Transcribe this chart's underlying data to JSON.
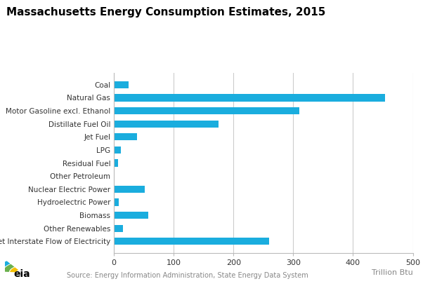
{
  "title": "Massachusetts Energy Consumption Estimates, 2015",
  "categories": [
    "Coal",
    "Natural Gas",
    "Motor Gasoline excl. Ethanol",
    "Distillate Fuel Oil",
    "Jet Fuel",
    "LPG",
    "Residual Fuel",
    "Other Petroleum",
    "Nuclear Electric Power",
    "Hydroelectric Power",
    "Biomass",
    "Other Renewables",
    "Net Interstate Flow of Electricity"
  ],
  "values": [
    25,
    453,
    310,
    175,
    38,
    12,
    7,
    1,
    52,
    8,
    57,
    15,
    260
  ],
  "bar_color": "#1aadde",
  "xlabel": "Trillion Btu",
  "xlim": [
    0,
    500
  ],
  "xticks": [
    0,
    100,
    200,
    300,
    400,
    500
  ],
  "source_text": "Source: Energy Information Administration, State Energy Data System",
  "background_color": "#ffffff",
  "title_fontsize": 11,
  "label_fontsize": 7.5,
  "tick_fontsize": 8,
  "xlabel_fontsize": 8,
  "grid_color": "#cccccc",
  "spine_color": "#bbbbbb",
  "source_color": "#888888",
  "bar_height": 0.55,
  "logo_colors": {
    "yellow": "#f5c000",
    "green": "#6ab04c",
    "blue": "#1aadde"
  }
}
